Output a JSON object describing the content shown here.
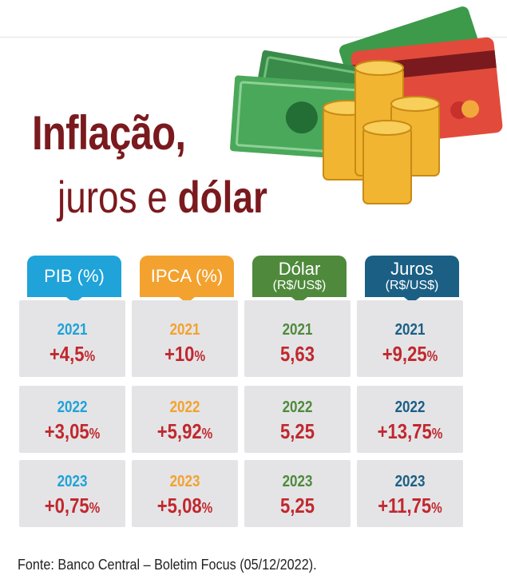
{
  "title": {
    "line1": "Inflação,",
    "line2_prefix": "juros e ",
    "line2_bold": "dólar"
  },
  "columns": [
    {
      "label": "PIB (%)",
      "sub": "",
      "color": "#1fa3d8",
      "year_color": "#1fa3d8",
      "rows": [
        {
          "year": "2021",
          "value": "+4,5",
          "unit": "%"
        },
        {
          "year": "2022",
          "value": "+3,05",
          "unit": "%"
        },
        {
          "year": "2023",
          "value": "+0,75",
          "unit": "%"
        }
      ]
    },
    {
      "label": "IPCA (%)",
      "sub": "",
      "color": "#f3a22f",
      "year_color": "#f3a22f",
      "rows": [
        {
          "year": "2021",
          "value": "+10",
          "unit": "%"
        },
        {
          "year": "2022",
          "value": "+5,92",
          "unit": "%"
        },
        {
          "year": "2023",
          "value": "+5,08",
          "unit": "%"
        }
      ]
    },
    {
      "label": "Dólar",
      "sub": "(R$/US$)",
      "color": "#4f8a3c",
      "year_color": "#4f8a3c",
      "rows": [
        {
          "year": "2021",
          "value": "5,63",
          "unit": ""
        },
        {
          "year": "2022",
          "value": "5,25",
          "unit": ""
        },
        {
          "year": "2023",
          "value": "5,25",
          "unit": ""
        }
      ]
    },
    {
      "label": "Juros",
      "sub": "(R$/US$)",
      "color": "#1b5f84",
      "year_color": "#1b5f84",
      "rows": [
        {
          "year": "2021",
          "value": "+9,25",
          "unit": "%"
        },
        {
          "year": "2022",
          "value": "+13,75",
          "unit": "%"
        },
        {
          "year": "2023",
          "value": "+11,75",
          "unit": "%"
        }
      ]
    }
  ],
  "source": "Fonte: Banco Central – Boletim Focus (05/12/2022).",
  "icons": [
    "credit-card-icon",
    "banknote-icon",
    "coins-icon"
  ]
}
